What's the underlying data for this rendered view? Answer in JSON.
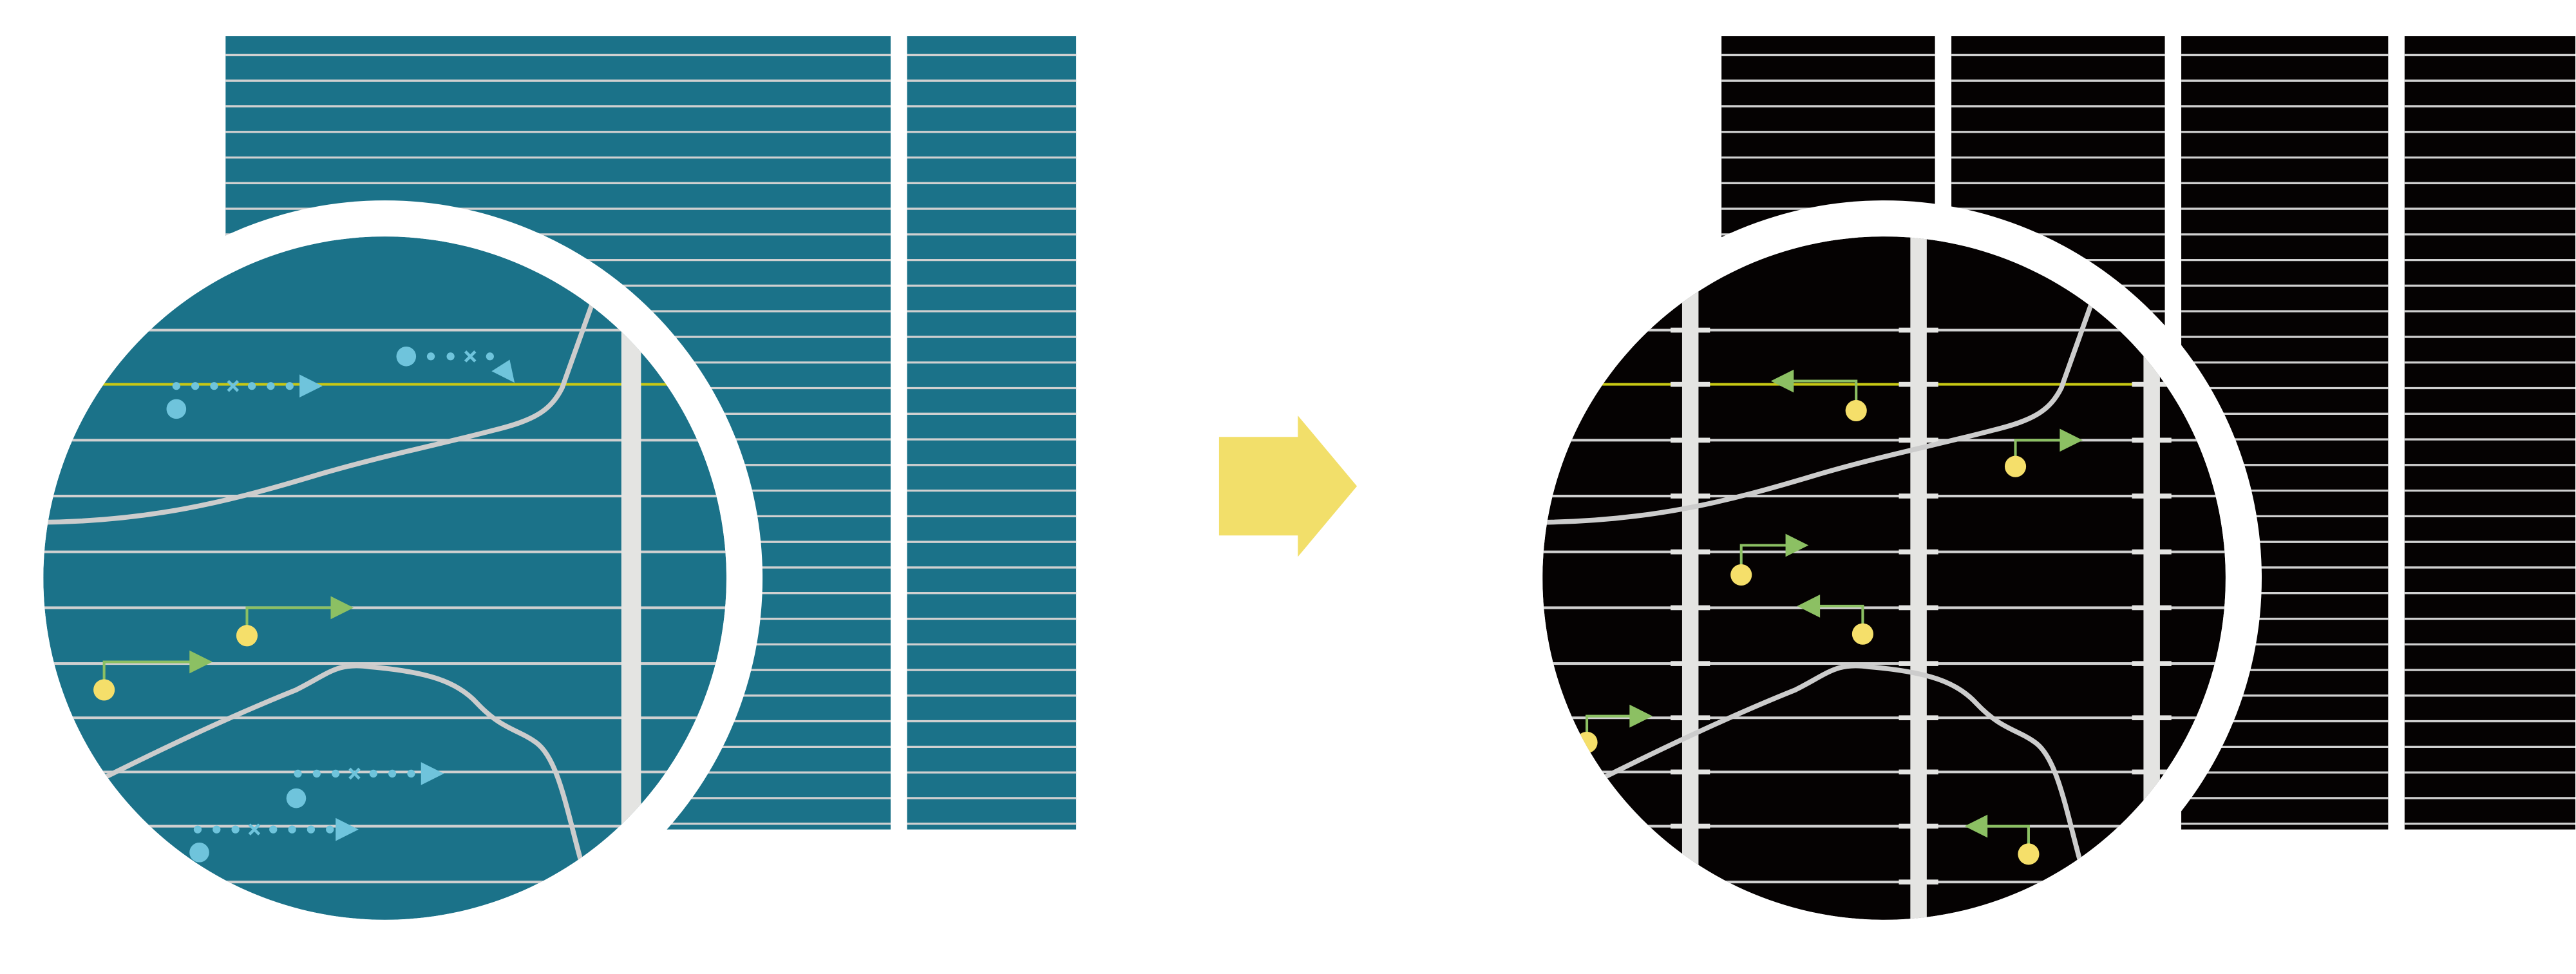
{
  "colors": {
    "before_panel": "#1b7289",
    "after_panel": "#050202",
    "grid_line": "#d0d0d0",
    "divider_bar": "#e4e4e2",
    "highlight_line": "#c8c814",
    "dotted_arrow": "#6fc4dc",
    "green_arrow": "#8cc063",
    "yellow_dot": "#f5df6a",
    "transition_arrow": "#f2df6a",
    "curve": "#cccccc"
  },
  "panels": [
    {
      "id": "before",
      "icon": "blue-dotted-arrow-icon"
    },
    {
      "id": "after",
      "icon": "green-arrow-icon"
    }
  ],
  "transition": {
    "icon": "right-arrow-icon"
  }
}
